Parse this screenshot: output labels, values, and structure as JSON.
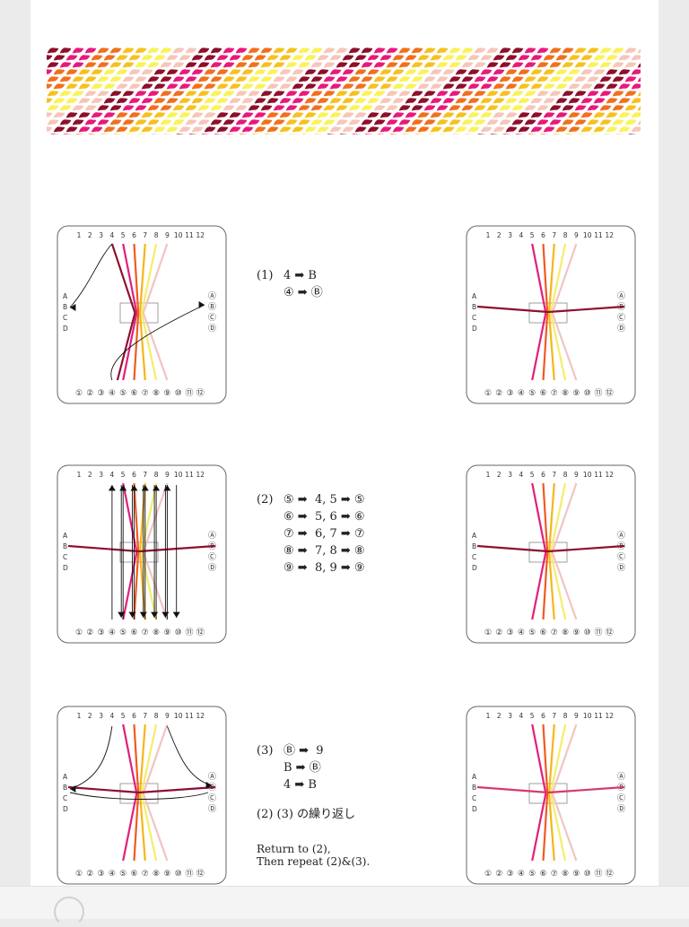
{
  "pattern": {
    "colors": [
      "#8e0f2a",
      "#e8197b",
      "#f0701d",
      "#f6c11f",
      "#faf25a",
      "#f6c6b8"
    ]
  },
  "card": {
    "top_numbers": [
      "1",
      "2",
      "3",
      "4",
      "5",
      "6",
      "7",
      "8",
      "9",
      "10",
      "11",
      "12"
    ],
    "bottom_numbers": [
      "①",
      "②",
      "③",
      "④",
      "⑤",
      "⑥",
      "⑦",
      "⑧",
      "⑨",
      "⑩",
      "⑪",
      "⑫"
    ],
    "left_letters": [
      "A",
      "B",
      "C",
      "D"
    ],
    "right_letters": [
      "Ⓐ",
      "Ⓑ",
      "Ⓒ",
      "Ⓓ"
    ]
  },
  "step1": {
    "label": "(1)",
    "lines": [
      "4 ➡ B",
      "④ ➡ Ⓑ"
    ]
  },
  "step2": {
    "label": "(2)",
    "lines": [
      "⑤ ➡  4, 5 ➡ ⑤",
      "⑥ ➡  5, 6 ➡ ⑥",
      "⑦ ➡  6, 7 ➡ ⑦",
      "⑧ ➡  7, 8 ➡ ⑧",
      "⑨ ➡  8, 9 ➡ ⑨"
    ]
  },
  "step3": {
    "label": "(3)",
    "lines": [
      "Ⓑ ➡  9",
      "B ➡ Ⓑ",
      "4 ➡ B"
    ],
    "repeat_jp": "(2) (3) の繰り返し",
    "repeat_en_1": "Return to (2),",
    "repeat_en_2": "Then repeat (2)&(3)."
  }
}
